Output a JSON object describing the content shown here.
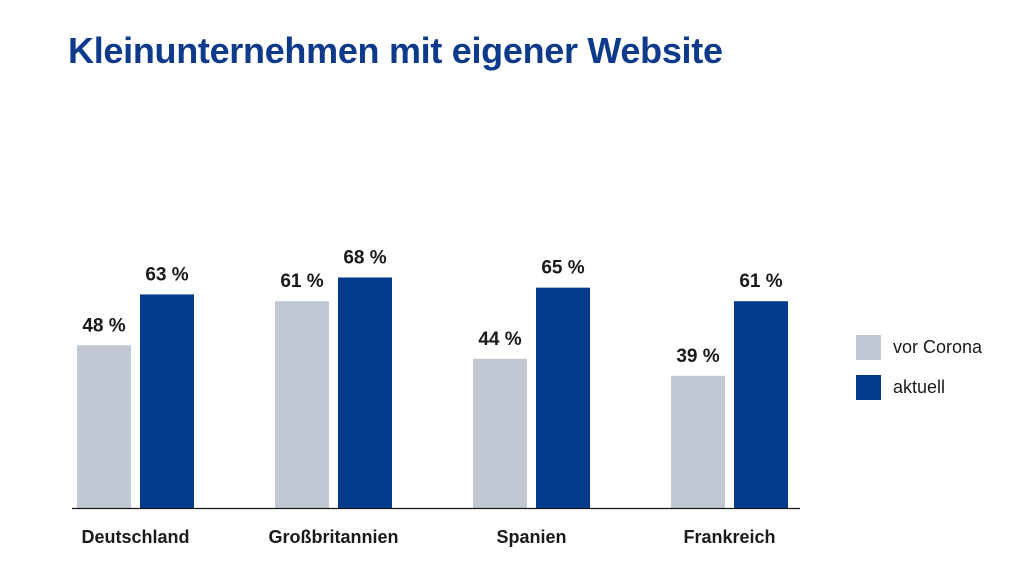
{
  "chart_data": {
    "type": "bar",
    "title": "Kleinunternehmen mit eigener Website",
    "categories": [
      "Deutschland",
      "Großbritannien",
      "Spanien",
      "Frankreich"
    ],
    "series": [
      {
        "name": "vor Corona",
        "values": [
          48,
          61,
          44,
          39
        ],
        "labels": [
          "48 %",
          "61 %",
          "44 %",
          "39 %"
        ],
        "color": "#c2c8d3"
      },
      {
        "name": "aktuell",
        "values": [
          63,
          68,
          65,
          61
        ],
        "labels": [
          "63 %",
          "68 %",
          "65 %",
          "61 %"
        ],
        "color": "#033a8c"
      }
    ],
    "ylim": [
      0,
      100
    ],
    "grid": false,
    "legend_position": "right"
  }
}
